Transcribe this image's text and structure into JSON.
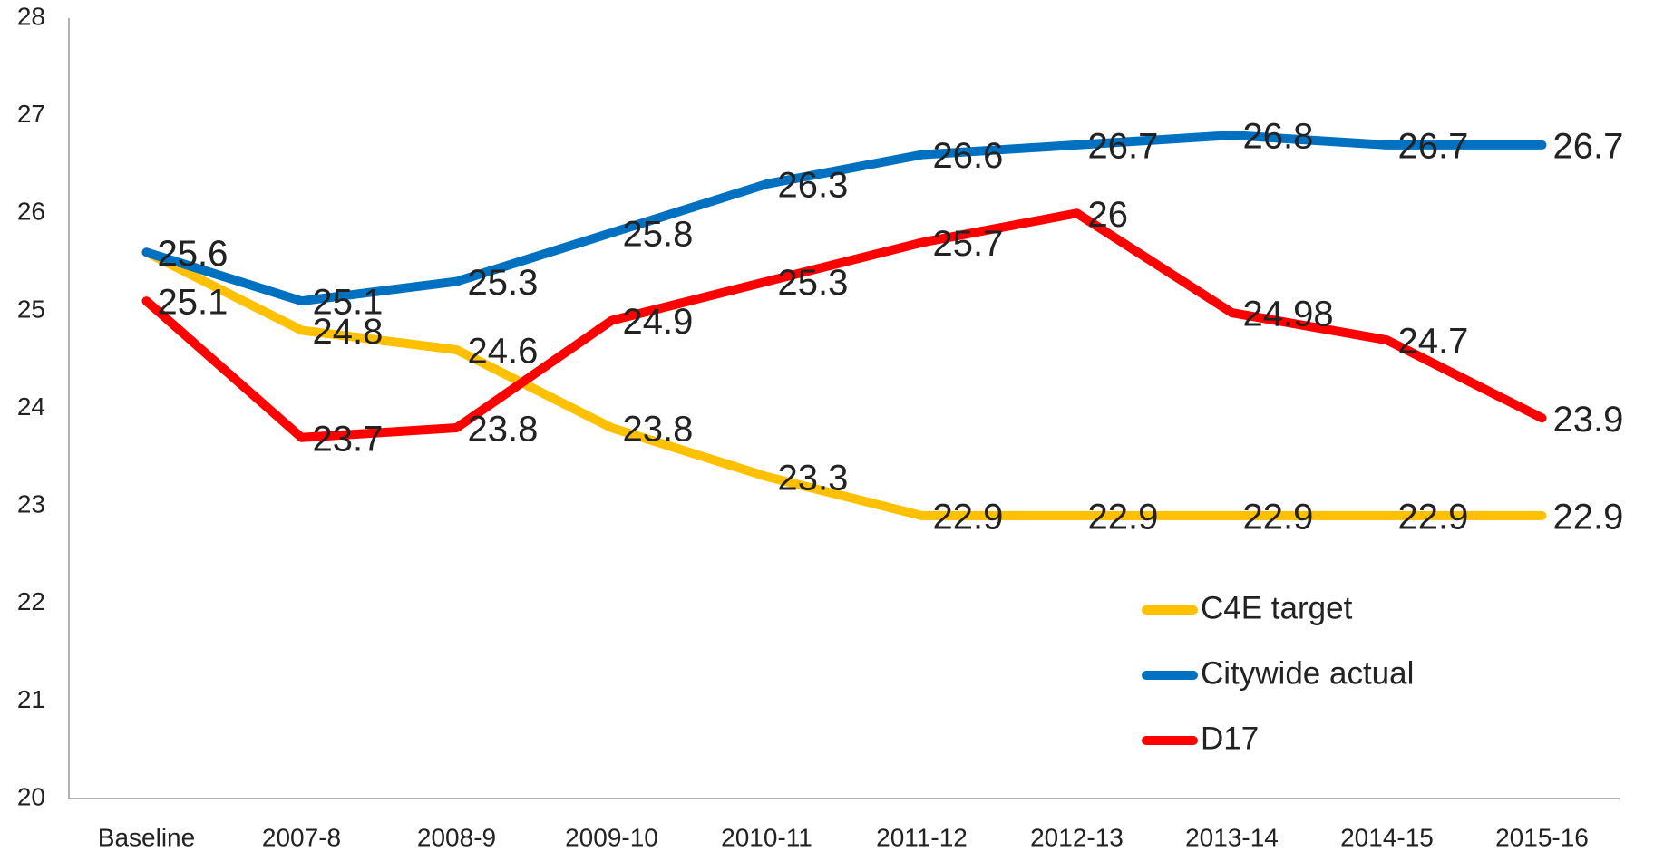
{
  "chart_data": {
    "type": "line",
    "categories": [
      "Baseline",
      "2007-8",
      "2008-9",
      "2009-10",
      "2010-11",
      "2011-12",
      "2012-13",
      "2013-14",
      "2014-15",
      "2015-16"
    ],
    "series": [
      {
        "name": "C4E target",
        "color": "#FFC000",
        "values": [
          25.6,
          24.8,
          24.6,
          23.8,
          23.3,
          22.9,
          22.9,
          22.9,
          22.9,
          22.9
        ]
      },
      {
        "name": "Citywide actual",
        "color": "#0070C0",
        "values": [
          25.6,
          25.1,
          25.3,
          25.8,
          26.3,
          26.6,
          26.7,
          26.8,
          26.7,
          26.7
        ]
      },
      {
        "name": "D17",
        "color": "#FF0000",
        "values": [
          25.1,
          23.7,
          23.8,
          24.9,
          25.3,
          25.7,
          26,
          24.98,
          24.7,
          23.9
        ]
      }
    ],
    "ylim": [
      20,
      28
    ],
    "yticks": [
      20,
      21,
      22,
      23,
      24,
      25,
      26,
      27,
      28
    ],
    "grid": false,
    "legend": "lower right"
  }
}
